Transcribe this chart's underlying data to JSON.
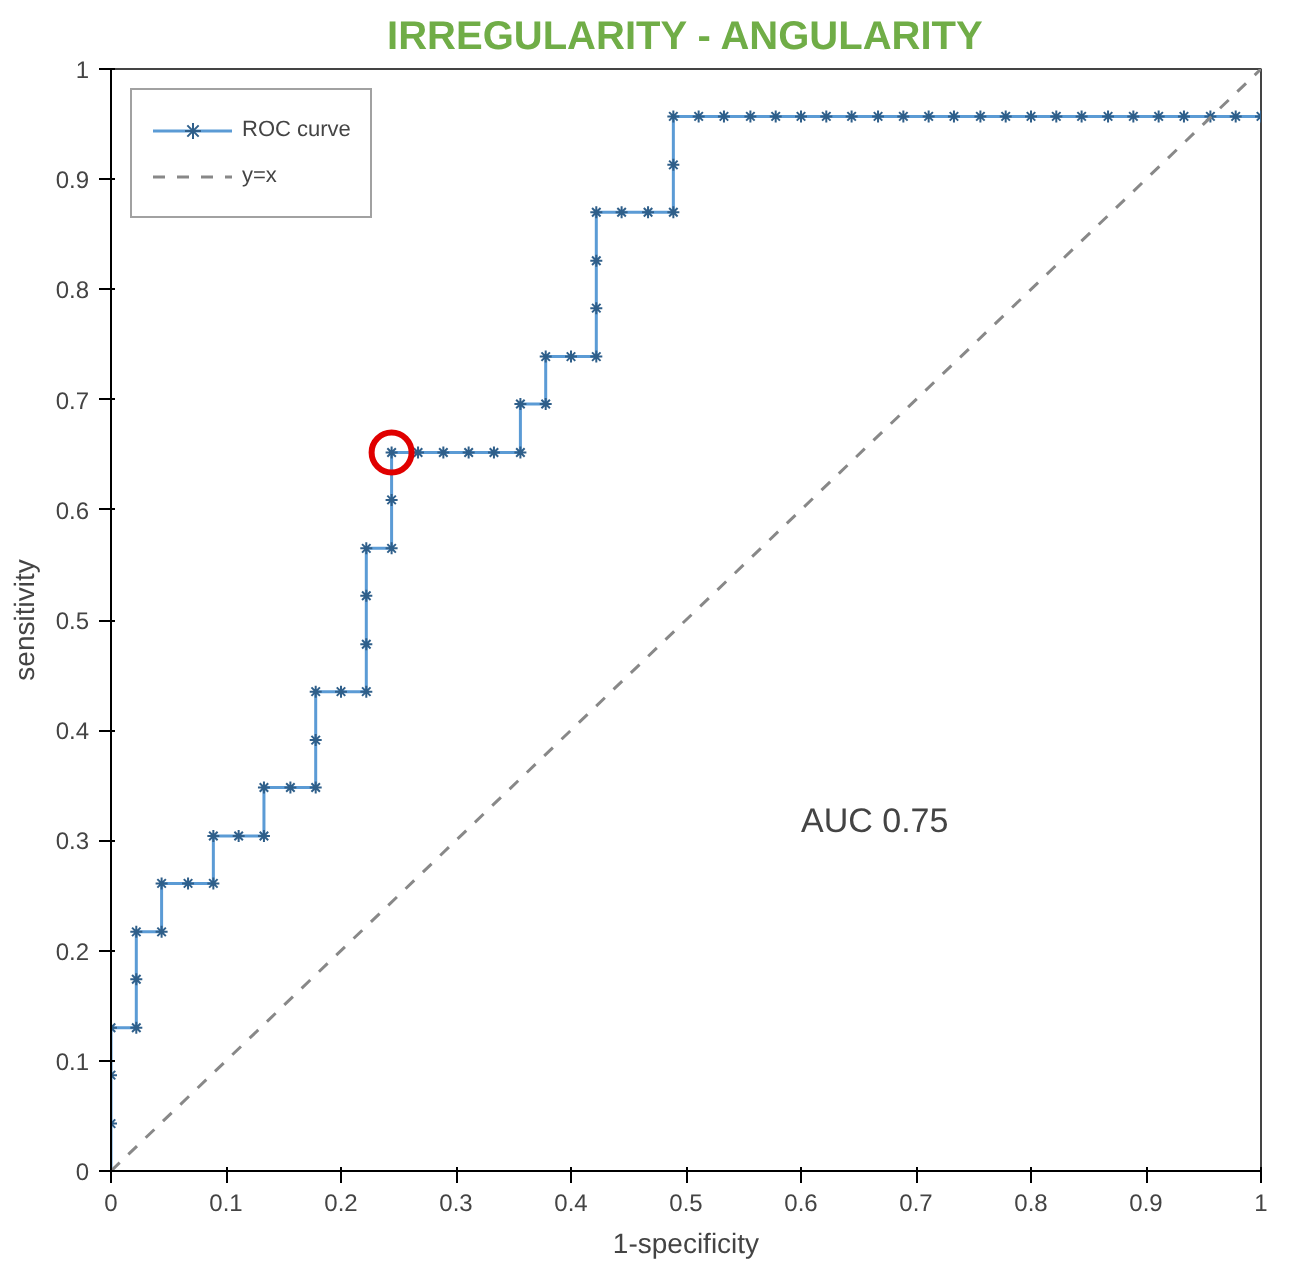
{
  "chart_data": {
    "type": "line",
    "title": "IRREGULARITY - ANGULARITY",
    "xlabel": "1-specificity",
    "ylabel": "sensitivity",
    "xlim": [
      0,
      1
    ],
    "ylim": [
      0,
      1
    ],
    "xticks": [
      0,
      0.1,
      0.2,
      0.3,
      0.4,
      0.5,
      0.6,
      0.7,
      0.8,
      0.9,
      1
    ],
    "yticks": [
      0,
      0.1,
      0.2,
      0.3,
      0.4,
      0.5,
      0.6,
      0.7,
      0.8,
      0.9,
      1
    ],
    "grid": false,
    "legend": "top left",
    "annotations": [
      "AUC    0.75"
    ],
    "series": [
      {
        "name": "ROC curve",
        "color": "#5b9bd5",
        "marker": "cross",
        "line_style": "solid",
        "x": [
          0,
          0,
          0,
          0,
          0.022,
          0.022,
          0.022,
          0.044,
          0.044,
          0.067,
          0.089,
          0.089,
          0.111,
          0.133,
          0.133,
          0.156,
          0.178,
          0.178,
          0.178,
          0.2,
          0.222,
          0.222,
          0.222,
          0.222,
          0.244,
          0.244,
          0.244,
          0.267,
          0.289,
          0.311,
          0.333,
          0.356,
          0.356,
          0.378,
          0.378,
          0.4,
          0.422,
          0.422,
          0.422,
          0.422,
          0.444,
          0.467,
          0.489,
          0.489,
          0.489,
          0.511,
          0.533,
          0.556,
          0.578,
          0.6,
          0.622,
          0.644,
          0.667,
          0.689,
          0.711,
          0.733,
          0.756,
          0.778,
          0.8,
          0.822,
          0.844,
          0.867,
          0.889,
          0.911,
          0.933,
          0.956,
          0.978,
          1
        ],
        "values": [
          0,
          0.043,
          0.087,
          0.13,
          0.13,
          0.174,
          0.217,
          0.217,
          0.261,
          0.261,
          0.261,
          0.304,
          0.304,
          0.304,
          0.348,
          0.348,
          0.348,
          0.391,
          0.435,
          0.435,
          0.435,
          0.478,
          0.522,
          0.565,
          0.565,
          0.609,
          0.652,
          0.652,
          0.652,
          0.652,
          0.652,
          0.652,
          0.696,
          0.696,
          0.739,
          0.739,
          0.739,
          0.783,
          0.826,
          0.87,
          0.87,
          0.87,
          0.87,
          0.913,
          0.957,
          0.957,
          0.957,
          0.957,
          0.957,
          0.957,
          0.957,
          0.957,
          0.957,
          0.957,
          0.957,
          0.957,
          0.957,
          0.957,
          0.957,
          0.957,
          0.957,
          0.957,
          0.957,
          0.957,
          0.957,
          0.957,
          0.957,
          0.957
        ]
      },
      {
        "name": "y=x",
        "color": "#888888",
        "marker": "none",
        "line_style": "dashed",
        "x": [
          0,
          1
        ],
        "values": [
          0,
          1
        ]
      },
      {
        "type": "scatter",
        "color": "#e00000",
        "marker": "circle",
        "x": [
          0.244
        ],
        "values": [
          0.652
        ]
      }
    ]
  }
}
